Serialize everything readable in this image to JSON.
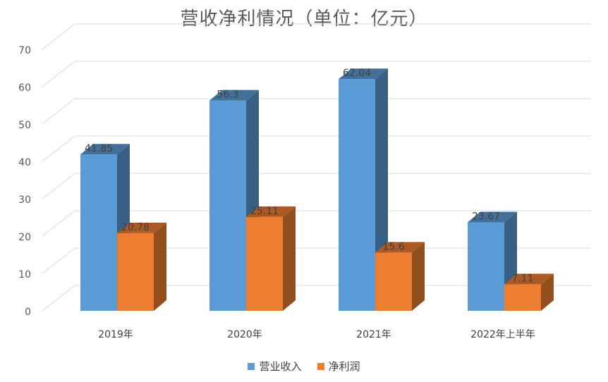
{
  "chart_data": {
    "type": "bar",
    "title": "营收净利情况（单位：亿元）",
    "categories": [
      "2019年",
      "2020年",
      "2021年",
      "2022年上半年"
    ],
    "series": [
      {
        "name": "营业收入",
        "values": [
          41.85,
          56.3,
          62.04,
          23.67
        ],
        "labels": [
          "41.85",
          "56.3",
          "62.04",
          "23.67"
        ],
        "color": "#5B9BD5"
      },
      {
        "name": "净利润",
        "values": [
          20.78,
          25.11,
          15.6,
          7.11
        ],
        "labels": [
          "20.78",
          "25.11",
          "15.6",
          "7.11"
        ],
        "color": "#ED7D31"
      }
    ],
    "ylim": [
      0,
      70
    ],
    "yticks": [
      "0",
      "10",
      "20",
      "30",
      "40",
      "50",
      "60",
      "70"
    ],
    "grid": true,
    "legend_position": "bottom",
    "style": "3d-clustered-column"
  }
}
